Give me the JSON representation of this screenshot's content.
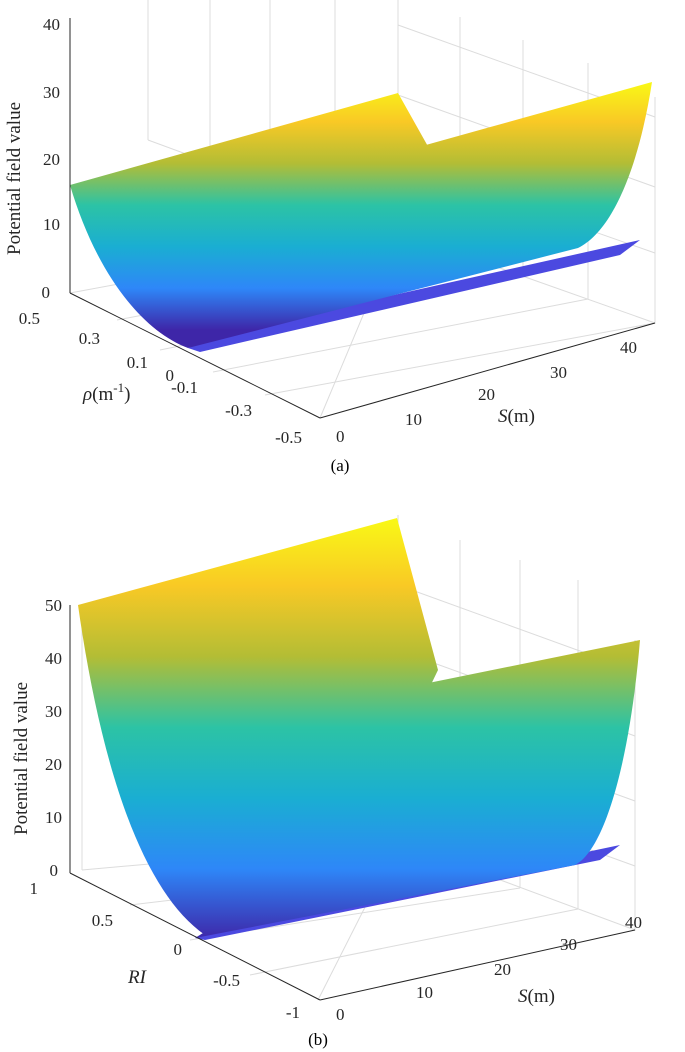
{
  "chart_data": [
    {
      "type": "surface",
      "panel": "(a)",
      "zlabel": "Potential field value",
      "xlabel_italic": "ρ",
      "xlabel_unit": "(m",
      "xlabel_exp": "-1",
      "xlabel_close": ")",
      "ylabel_italic": "S",
      "ylabel_unit": "(m)",
      "x_ticks": [
        "0.5",
        "0.3",
        "0.1",
        "0",
        "-0.1",
        "-0.3",
        "-0.5"
      ],
      "y_ticks": [
        "0",
        "10",
        "20",
        "30",
        "40"
      ],
      "z_ticks": [
        "0",
        "10",
        "20",
        "30",
        "40"
      ],
      "xlim": [
        -0.5,
        0.5
      ],
      "ylim": [
        0,
        40
      ],
      "zlim": [
        0,
        40
      ],
      "edge_z": 16,
      "colormap": "parula",
      "colors": [
        "#3e26a8",
        "#2e87f8",
        "#1aaed2",
        "#2cc3a5",
        "#b3bd35",
        "#f9c925",
        "#f9fb15"
      ]
    },
    {
      "type": "surface",
      "panel": "(b)",
      "zlabel": "Potential field value",
      "xlabel_italic": "RI",
      "ylabel_italic": "S",
      "ylabel_unit": "(m)",
      "x_ticks": [
        "1",
        "0.5",
        "0",
        "-0.5",
        "-1"
      ],
      "y_ticks": [
        "0",
        "10",
        "20",
        "30",
        "40"
      ],
      "z_ticks": [
        "0",
        "10",
        "20",
        "30",
        "40",
        "50"
      ],
      "xlim": [
        -1,
        1
      ],
      "ylim": [
        0,
        40
      ],
      "zlim": [
        0,
        50
      ],
      "edge_z": 50,
      "colormap": "parula",
      "colors": [
        "#3e26a8",
        "#2e87f8",
        "#1aaed2",
        "#2cc3a5",
        "#b3bd35",
        "#f9c925",
        "#f9fb15"
      ]
    }
  ]
}
